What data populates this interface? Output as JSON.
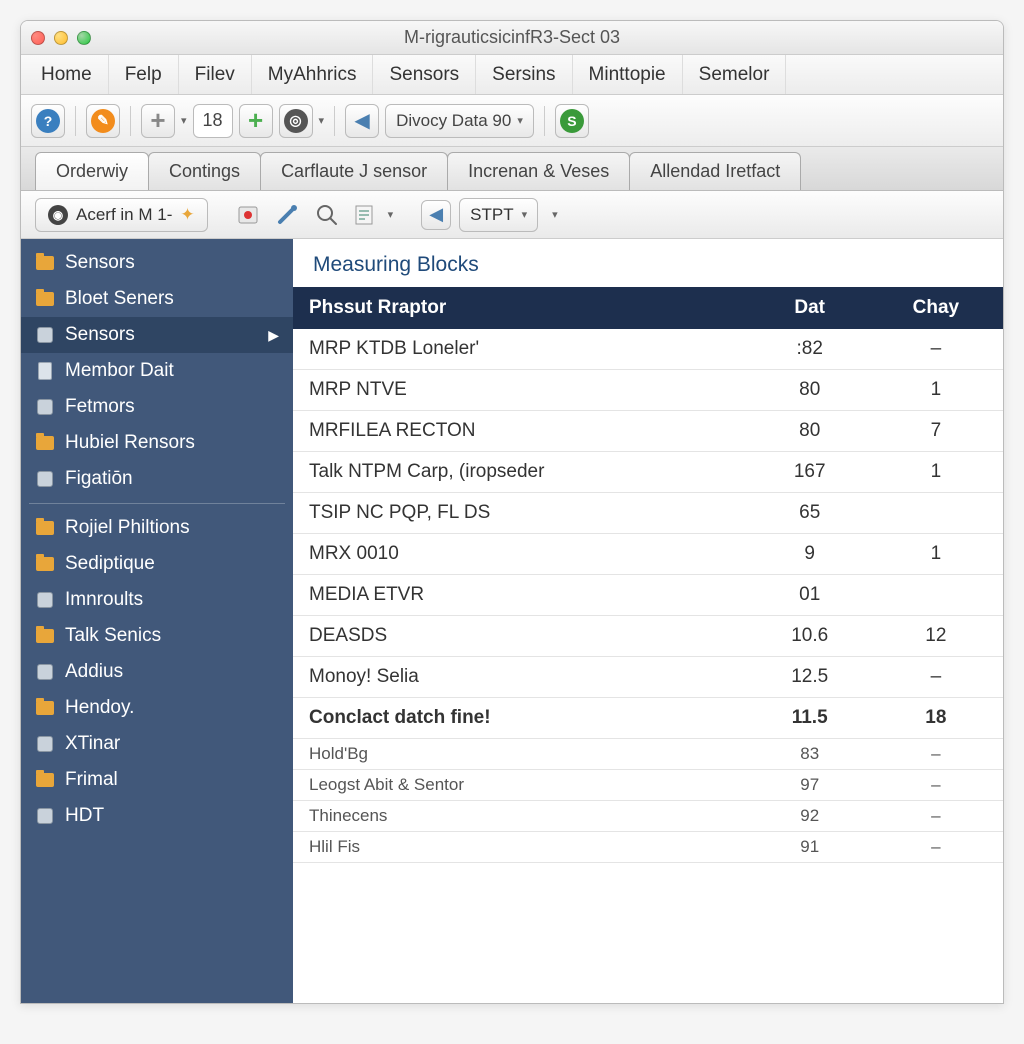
{
  "window": {
    "title": "M-rigrauticsicinfR3-Sect 03"
  },
  "menubar": [
    "Home",
    "Felp",
    "Filev",
    "MyAhhrics",
    "Sensors",
    "Sersins",
    "Minttopie",
    "Semelor"
  ],
  "toolbar": {
    "num_value": "18",
    "dropdown_label": "Divocy Data 90",
    "icons": {
      "blue": "#3a7fbf",
      "orange": "#f28c1c",
      "gray": "#888888",
      "green": "#4caf50",
      "darkgreen": "#3a9a3a",
      "arrow": "#4a7fb0"
    }
  },
  "tabs": [
    {
      "label": "Orderwiy",
      "active": true
    },
    {
      "label": "Contings",
      "active": false
    },
    {
      "label": "Carflaute J sensor",
      "active": false
    },
    {
      "label": "Increnan & Veses",
      "active": false
    },
    {
      "label": "Allendad Iretfact",
      "active": false
    }
  ],
  "subtoolbar": {
    "dropdown_label": "Acerf in M 1-",
    "stpt_label": "STPT"
  },
  "sidebar": {
    "group1": [
      {
        "icon": "folder",
        "label": "Sensors"
      },
      {
        "icon": "folder",
        "label": "Bloet Seners"
      },
      {
        "icon": "node",
        "label": "Sensors",
        "selected": true,
        "arrow": true
      },
      {
        "icon": "doc",
        "label": "Membor Dait"
      },
      {
        "icon": "node",
        "label": "Fetmors"
      },
      {
        "icon": "folder",
        "label": "Hubiel Rensors"
      },
      {
        "icon": "node",
        "label": "Figatiōn"
      }
    ],
    "group2": [
      {
        "icon": "folder",
        "label": "Rojiel Philtions"
      },
      {
        "icon": "folder",
        "label": "Sediptique"
      },
      {
        "icon": "node",
        "label": "Imnroults"
      },
      {
        "icon": "folder",
        "label": "Talk Senics"
      },
      {
        "icon": "node",
        "label": "Addius"
      },
      {
        "icon": "folder",
        "label": "Hendoy."
      },
      {
        "icon": "node",
        "label": "XTinar"
      },
      {
        "icon": "folder",
        "label": "Frimal"
      },
      {
        "icon": "node",
        "label": "HDT"
      }
    ]
  },
  "section_title": "Measuring Blocks",
  "table": {
    "columns": [
      "Phssut Rraptor",
      "Dat",
      "Chay"
    ],
    "rows": [
      {
        "cells": [
          "MRP KTDB Loneler'",
          ":82",
          "–"
        ]
      },
      {
        "cells": [
          "MRP NTVE",
          "80",
          "1"
        ]
      },
      {
        "cells": [
          "MRFILEA RECTON",
          "80",
          "7"
        ]
      },
      {
        "cells": [
          "Talk NTPM Carp, (iropseder",
          "167",
          "1"
        ]
      },
      {
        "cells": [
          "TSIP NC PQP, FL DS",
          "65",
          ""
        ]
      },
      {
        "cells": [
          "MRX 0010",
          "9",
          "1"
        ]
      },
      {
        "cells": [
          "MEDIA ETVR",
          "01",
          ""
        ]
      },
      {
        "cells": [
          "DEASDS",
          "10.6",
          "12"
        ]
      },
      {
        "cells": [
          "Monoy! Selia",
          "12.5",
          "–"
        ]
      },
      {
        "cells": [
          "Conclact datch fine!",
          "11.5",
          "18"
        ],
        "bold": true
      },
      {
        "cells": [
          "Hold'Bg",
          "83",
          "–"
        ],
        "small": true
      },
      {
        "cells": [
          "Leogst Abit & Sentor",
          "97",
          "–"
        ],
        "small": true
      },
      {
        "cells": [
          "Thinecens",
          "92",
          "–"
        ],
        "small": true
      },
      {
        "cells": [
          "Hlil Fis",
          "91",
          "–"
        ],
        "small": true
      }
    ]
  },
  "colors": {
    "sidebar_bg": "#41587a",
    "sidebar_selected": "#2f4563",
    "table_header_bg": "#1d2f4e",
    "section_title": "#1f4a7a"
  }
}
